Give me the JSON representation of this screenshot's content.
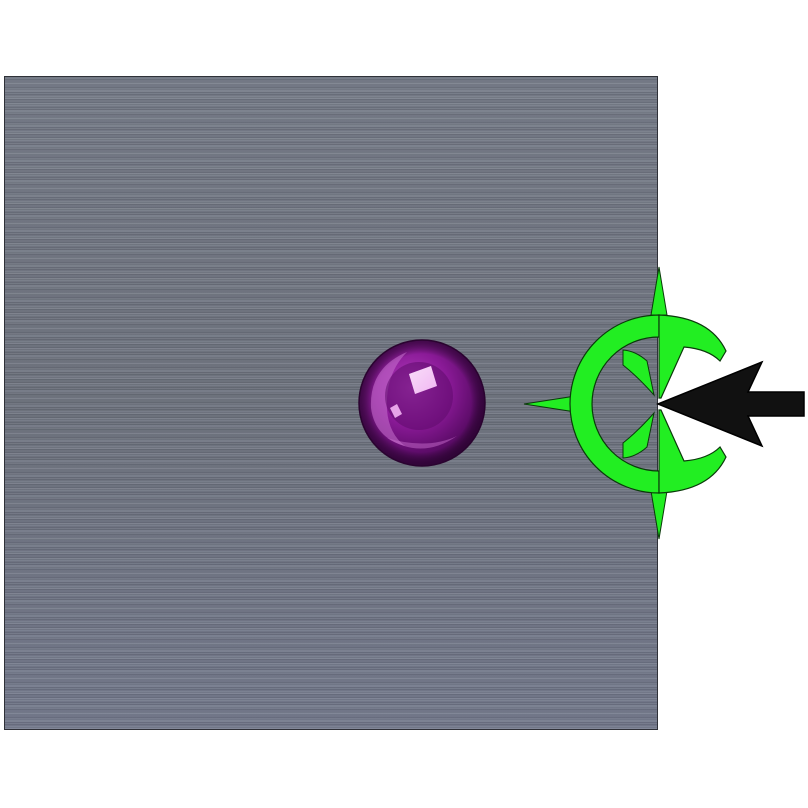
{
  "scene": {
    "panel_color": "#6f7582",
    "background_color": "#ffffff",
    "ball": {
      "color": "#7a1585",
      "highlight": "#e39be6",
      "icon": "sphere-ball-icon"
    },
    "gripper": {
      "color": "#22ee22",
      "outline": "#0a3a0a",
      "icon": "green-gripper-crosshair-icon"
    },
    "arrow": {
      "color": "#111111",
      "direction": "left",
      "icon": "black-push-arrow-icon"
    }
  }
}
